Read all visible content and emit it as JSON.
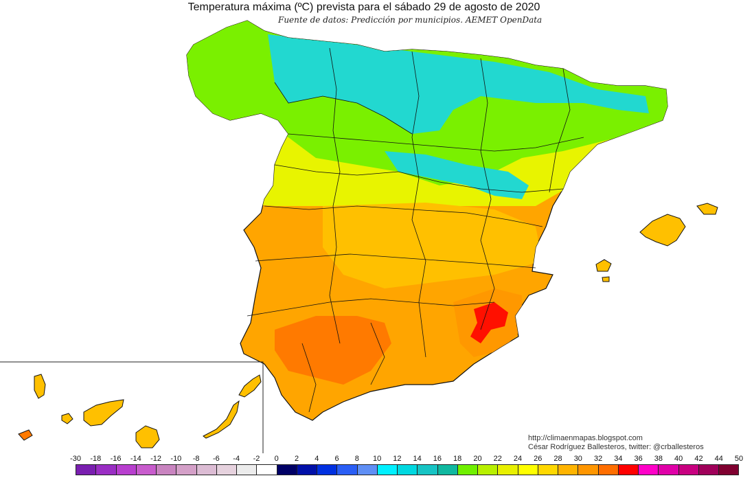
{
  "header": {
    "title": "Temperatura máxima (ºC) prevista para el sábado 29 de agosto de 2020",
    "subtitle": "Fuente de datos: Predicción por municipios. AEMET OpenData"
  },
  "credits": {
    "blog": "http://climaenmapas.blogspot.com",
    "author": "César Rodríguez Ballesteros, twitter: @crballesteros"
  },
  "legend": {
    "labels": [
      "-30",
      "-18",
      "-16",
      "-14",
      "-12",
      "-10",
      "-8",
      "-6",
      "-4",
      "-2",
      "0",
      "2",
      "4",
      "6",
      "8",
      "10",
      "12",
      "14",
      "16",
      "18",
      "20",
      "22",
      "24",
      "26",
      "28",
      "30",
      "32",
      "34",
      "36",
      "38",
      "40",
      "42",
      "44",
      "50"
    ],
    "colors": [
      "#7a1fb0",
      "#9a2ec4",
      "#b83fcf",
      "#c85ccd",
      "#c984c0",
      "#d4a0c8",
      "#dcbcd4",
      "#e6d2de",
      "#ececec",
      "#ffffff",
      "#000066",
      "#0010a8",
      "#0030e0",
      "#2a5ef5",
      "#5f8ff5",
      "#00f0ff",
      "#00d8e0",
      "#17c4c4",
      "#10b8a0",
      "#70f000",
      "#b8f000",
      "#e8f000",
      "#ffff00",
      "#ffd800",
      "#ffb400",
      "#ff9600",
      "#ff6e00",
      "#ff0000",
      "#ff00c8",
      "#e000a8",
      "#c80080",
      "#a0005a",
      "#800030"
    ]
  },
  "map": {
    "regions": [
      "peninsula",
      "baleares",
      "canarias"
    ],
    "colors": {
      "cool": "#22d8d0",
      "mild": "#7af000",
      "warm": "#e8f400",
      "hot": "#ffc000",
      "hotter": "#ff9800",
      "hottest": "#ff7a00",
      "extreme": "#ff1000"
    }
  }
}
